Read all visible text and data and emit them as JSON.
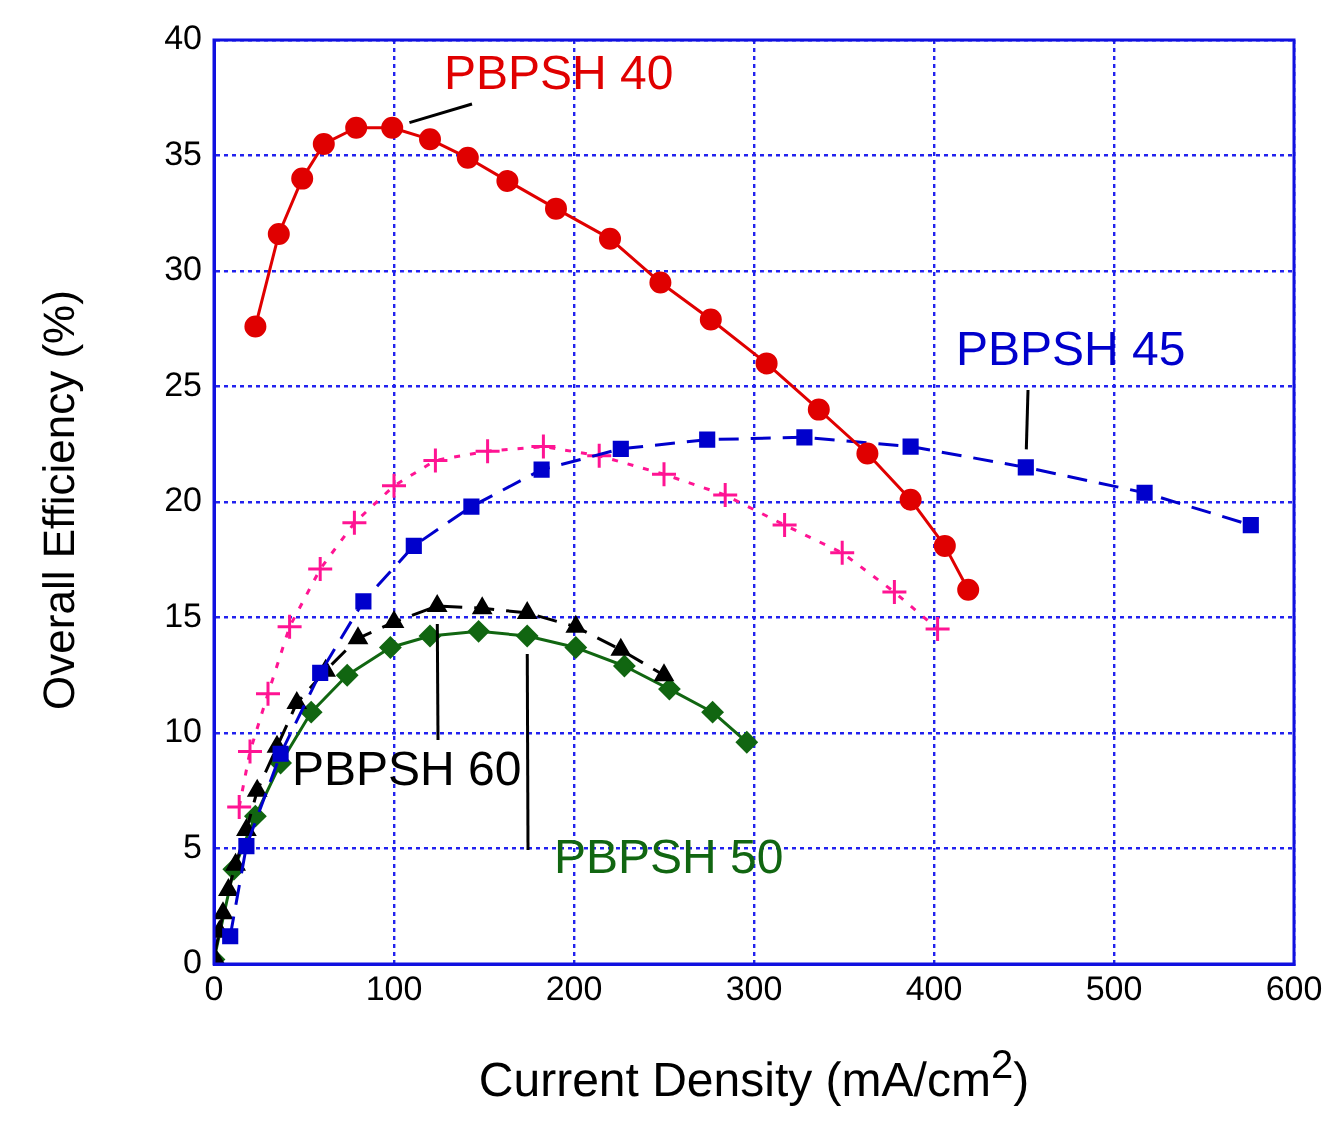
{
  "chart_data": {
    "type": "line",
    "xlabel": "Current Density (mA/cm$^{2}$)",
    "ylabel": "Overall Efficiency (%)",
    "xlim": [
      0,
      600
    ],
    "xticks": [
      0,
      100,
      200,
      300,
      400,
      500,
      600
    ],
    "ylim": [
      0,
      40
    ],
    "yticks": [
      0,
      5,
      10,
      15,
      20,
      25,
      30,
      35,
      40
    ],
    "grid": true,
    "legend": false,
    "series": [
      {
        "name": "PBPSH 40",
        "color": "#e00000",
        "marker": "circle",
        "line_style": "solid",
        "x": [
          23,
          36,
          49,
          61,
          79,
          99,
          120,
          141,
          163,
          190,
          220,
          248,
          276,
          307,
          336,
          363,
          387,
          406,
          419
        ],
        "values": [
          27.6,
          31.6,
          34.0,
          35.5,
          36.2,
          36.2,
          35.7,
          34.9,
          33.9,
          32.7,
          31.4,
          29.5,
          27.9,
          26.0,
          24.0,
          22.1,
          20.1,
          18.1,
          16.2
        ]
      },
      {
        "name": "PBPSH 45",
        "color": "#0000cc",
        "marker": "square",
        "line_style": "dashed",
        "x": [
          9,
          18,
          37,
          59,
          83,
          111,
          143,
          182,
          226,
          274,
          328,
          387,
          451,
          517,
          576
        ],
        "values": [
          1.2,
          5.1,
          9.1,
          12.6,
          15.7,
          18.1,
          19.8,
          21.4,
          22.3,
          22.7,
          22.8,
          22.4,
          21.5,
          20.4,
          19.0
        ]
      },
      {
        "color": "#ff1493",
        "marker": "cross",
        "line_style": "dotted",
        "x": [
          14,
          20,
          30,
          42,
          59,
          78,
          100,
          123,
          152,
          183,
          214,
          250,
          284,
          317,
          349,
          378,
          402
        ],
        "values": [
          6.8,
          9.2,
          11.7,
          14.6,
          17.1,
          19.1,
          20.7,
          21.8,
          22.2,
          22.4,
          22.0,
          21.2,
          20.3,
          19.0,
          17.8,
          16.1,
          14.5
        ]
      },
      {
        "name": "PBPSH 60",
        "color": "#000000",
        "marker": "triangle",
        "line_style": "dashed",
        "x": [
          0,
          3,
          5,
          8,
          12,
          18,
          24,
          35,
          46,
          62,
          80,
          100,
          124,
          149,
          174,
          201,
          226,
          250
        ],
        "values": [
          0.3,
          1.4,
          2.2,
          3.2,
          4.3,
          5.8,
          7.5,
          9.4,
          11.3,
          12.7,
          14.1,
          14.8,
          15.5,
          15.4,
          15.2,
          14.6,
          13.6,
          12.5
        ]
      },
      {
        "name": "PBPSH 50",
        "color": "#116611",
        "marker": "diamond",
        "line_style": "solid",
        "x": [
          0,
          11,
          23,
          37,
          54,
          74,
          98,
          120,
          147,
          174,
          201,
          228,
          253,
          277,
          296
        ],
        "values": [
          0.2,
          4.1,
          6.4,
          8.7,
          10.9,
          12.5,
          13.7,
          14.2,
          14.4,
          14.2,
          13.7,
          12.9,
          11.9,
          10.9,
          9.6
        ]
      }
    ]
  }
}
